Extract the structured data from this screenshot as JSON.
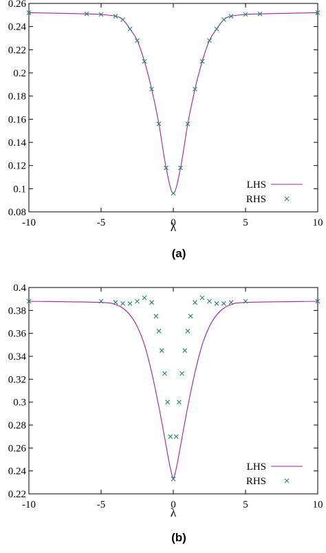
{
  "panels": [
    {
      "label": "(a)",
      "chart_data": {
        "type": "line",
        "xlabel": "λ",
        "ylabel": "",
        "xlim": [
          -10,
          10
        ],
        "ylim": [
          0.08,
          0.26
        ],
        "xticks": [
          -10,
          -5,
          0,
          5,
          10
        ],
        "xtick_labels": [
          "-10",
          "-5",
          "0",
          "5",
          "10"
        ],
        "yticks": [
          0.08,
          0.1,
          0.12,
          0.14,
          0.16,
          0.18,
          0.2,
          0.22,
          0.24,
          0.26
        ],
        "ytick_labels": [
          "0.08",
          "0.1",
          "0.12",
          "0.14",
          "0.16",
          "0.18",
          "0.2",
          "0.22",
          "0.24",
          "0.26"
        ],
        "grid": false,
        "legend": "bottom-right",
        "series": [
          {
            "name": "LHS",
            "style": "line",
            "color": "#a020a0",
            "x": [
              -10,
              -6,
              -5,
              -4,
              -3.5,
              -3,
              -2.5,
              -2,
              -1.5,
              -1,
              -0.5,
              0,
              0.5,
              1,
              1.5,
              2,
              2.5,
              3,
              3.5,
              4,
              5,
              6,
              10
            ],
            "y": [
              0.252,
              0.251,
              0.2505,
              0.249,
              0.246,
              0.238,
              0.228,
              0.21,
              0.186,
              0.156,
              0.118,
              0.096,
              0.118,
              0.156,
              0.186,
              0.21,
              0.228,
              0.238,
              0.246,
              0.249,
              0.2505,
              0.251,
              0.252
            ]
          },
          {
            "name": "RHS",
            "style": "markers",
            "color": "#2e8b6e",
            "x": [
              -10,
              -6,
              -5,
              -4,
              -3.5,
              -3,
              -2.5,
              -2,
              -1.5,
              -1,
              -0.5,
              0,
              0.5,
              1,
              1.5,
              2,
              2.5,
              3,
              3.5,
              4,
              5,
              6,
              10
            ],
            "y": [
              0.252,
              0.251,
              0.2505,
              0.249,
              0.246,
              0.238,
              0.228,
              0.21,
              0.186,
              0.156,
              0.118,
              0.096,
              0.118,
              0.156,
              0.186,
              0.21,
              0.228,
              0.238,
              0.246,
              0.249,
              0.2505,
              0.251,
              0.252
            ]
          }
        ]
      }
    },
    {
      "label": "(b)",
      "chart_data": {
        "type": "line",
        "xlabel": "λ",
        "ylabel": "",
        "xlim": [
          -10,
          10
        ],
        "ylim": [
          0.22,
          0.4
        ],
        "xticks": [
          -10,
          -5,
          0,
          5,
          10
        ],
        "xtick_labels": [
          "-10",
          "-5",
          "0",
          "5",
          "10"
        ],
        "yticks": [
          0.22,
          0.24,
          0.26,
          0.28,
          0.3,
          0.32,
          0.34,
          0.36,
          0.38,
          0.4
        ],
        "ytick_labels": [
          "0.22",
          "0.24",
          "0.26",
          "0.28",
          "0.3",
          "0.32",
          "0.34",
          "0.36",
          "0.38",
          "0.4"
        ],
        "grid": false,
        "legend": "bottom-right",
        "series": [
          {
            "name": "LHS",
            "style": "line",
            "color": "#a020a0",
            "x": [
              -10,
              -5,
              -4,
              -3.5,
              -3,
              -2.5,
              -2,
              -1.5,
              -1,
              -0.5,
              -0.25,
              0,
              0.25,
              0.5,
              1,
              1.5,
              2,
              2.5,
              3,
              3.5,
              4,
              5,
              10
            ],
            "y": [
              0.388,
              0.387,
              0.385,
              0.382,
              0.376,
              0.366,
              0.35,
              0.326,
              0.296,
              0.262,
              0.245,
              0.234,
              0.245,
              0.262,
              0.296,
              0.326,
              0.35,
              0.366,
              0.376,
              0.382,
              0.385,
              0.387,
              0.388
            ]
          },
          {
            "name": "RHS",
            "style": "markers",
            "color": "#2e8b6e",
            "x": [
              -10,
              -5,
              -4,
              -3.5,
              -3,
              -2.5,
              -2,
              -1.5,
              -1.2,
              -1,
              -0.8,
              -0.6,
              -0.4,
              -0.2,
              0,
              0.2,
              0.4,
              0.6,
              0.8,
              1,
              1.2,
              1.5,
              2,
              2.5,
              3,
              3.5,
              4,
              5,
              10
            ],
            "y": [
              0.388,
              0.388,
              0.387,
              0.386,
              0.386,
              0.388,
              0.391,
              0.387,
              0.375,
              0.362,
              0.345,
              0.325,
              0.3,
              0.27,
              0.233,
              0.27,
              0.3,
              0.325,
              0.345,
              0.362,
              0.375,
              0.387,
              0.391,
              0.388,
              0.386,
              0.386,
              0.387,
              0.388,
              0.388
            ]
          }
        ]
      }
    }
  ]
}
